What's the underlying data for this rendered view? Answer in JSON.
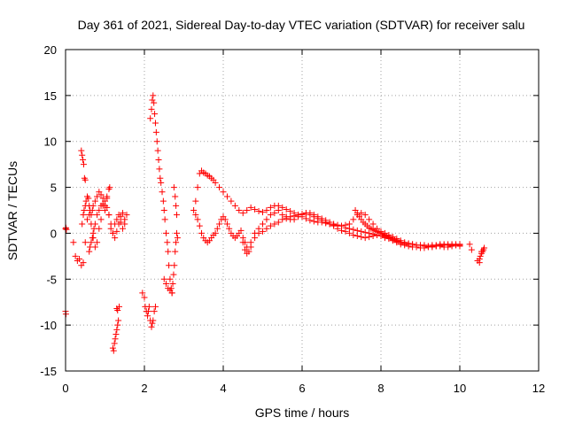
{
  "chart_data": {
    "type": "scatter",
    "title": "Day 361 of 2021, Sidereal Day-to-day VTEC variation (SDTVAR) for receiver salu",
    "xlabel": "GPS time / hours",
    "ylabel": "SDTVAR / TECUs",
    "xlim": [
      0,
      12
    ],
    "ylim": [
      -15,
      20
    ],
    "xticks": [
      0,
      2,
      4,
      6,
      8,
      10,
      12
    ],
    "yticks": [
      -15,
      -10,
      -5,
      0,
      5,
      10,
      15,
      20
    ],
    "grid": true,
    "marker": "+",
    "color": "#ff0000",
    "series": [
      {
        "name": "SDTVAR",
        "x": [
          0.0,
          0.01,
          0.02,
          0.0,
          0.01,
          0.2,
          0.25,
          0.3,
          0.35,
          0.4,
          0.45,
          0.5,
          0.55,
          0.6,
          0.65,
          0.7,
          0.75,
          0.8,
          0.85,
          0.9,
          0.95,
          1.0,
          1.05,
          1.1,
          1.15,
          1.2,
          1.25,
          1.3,
          1.35,
          1.4,
          1.45,
          1.5,
          1.55,
          0.42,
          0.45,
          0.47,
          0.5,
          0.52,
          0.55,
          0.58,
          0.6,
          0.62,
          0.65,
          0.68,
          0.7,
          0.75,
          0.8,
          0.85,
          0.9,
          0.95,
          1.0,
          1.05,
          1.1,
          1.12,
          0.6,
          0.62,
          0.65,
          0.68,
          0.7,
          0.72,
          0.75,
          0.8,
          0.85,
          0.9,
          0.95,
          1.0,
          1.05,
          1.1,
          1.15,
          1.2,
          1.25,
          1.3,
          1.35,
          1.4,
          1.45,
          1.5,
          0.4,
          0.42,
          0.44,
          0.46,
          0.48,
          0.5,
          1.2,
          1.22,
          1.24,
          1.26,
          1.28,
          1.3,
          1.32,
          1.34,
          1.36,
          1.3,
          1.32,
          1.95,
          2.0,
          2.02,
          2.05,
          2.08,
          2.1,
          2.12,
          2.15,
          2.18,
          2.2,
          2.22,
          2.25,
          2.28,
          2.15,
          2.18,
          2.2,
          2.22,
          2.24,
          2.26,
          2.28,
          2.3,
          2.32,
          2.34,
          2.36,
          2.38,
          2.4,
          2.42,
          2.45,
          2.48,
          2.5,
          2.52,
          2.55,
          2.58,
          2.6,
          2.62,
          2.65,
          2.68,
          2.7,
          2.5,
          2.55,
          2.6,
          2.65,
          2.7,
          2.72,
          2.74,
          2.76,
          2.78,
          2.8,
          2.82,
          2.84,
          2.75,
          2.78,
          2.8,
          2.82,
          3.25,
          3.3,
          3.35,
          3.4,
          3.45,
          3.5,
          3.55,
          3.6,
          3.65,
          3.7,
          3.75,
          3.8,
          3.9,
          4.0,
          4.1,
          4.2,
          4.3,
          4.4,
          4.5,
          4.6,
          4.7,
          4.8,
          4.9,
          5.0,
          5.1,
          5.2,
          5.3,
          5.4,
          5.5,
          5.6,
          5.7,
          5.8,
          5.9,
          6.0,
          6.1,
          6.2,
          6.3,
          6.4,
          6.5,
          6.6,
          6.7,
          6.8,
          6.9,
          7.0,
          7.1,
          7.2,
          7.3,
          7.4,
          7.5,
          7.6,
          7.7,
          7.8,
          7.9,
          8.0,
          8.1,
          8.2,
          8.3,
          8.4,
          8.5,
          8.6,
          8.7,
          8.8,
          8.9,
          9.0,
          9.1,
          9.2,
          9.3,
          9.4,
          9.5,
          9.6,
          9.7,
          9.8,
          9.9,
          10.0,
          3.3,
          3.35,
          3.4,
          3.45,
          3.5,
          3.55,
          3.6,
          3.65,
          3.7,
          3.75,
          3.8,
          3.85,
          3.9,
          3.95,
          4.0,
          4.05,
          4.1,
          4.15,
          4.2,
          4.25,
          4.3,
          4.35,
          4.4,
          4.45,
          4.5,
          4.55,
          4.6,
          4.65,
          4.7,
          4.8,
          4.9,
          5.0,
          5.1,
          5.2,
          5.3,
          5.4,
          5.5,
          5.6,
          5.7,
          5.8,
          5.9,
          6.0,
          6.1,
          6.2,
          6.3,
          6.4,
          6.5,
          6.6,
          6.7,
          6.8,
          6.9,
          7.0,
          7.1,
          7.2,
          7.3,
          7.4,
          7.5,
          7.6,
          7.7,
          7.8,
          7.9,
          8.0,
          8.1,
          8.2,
          8.3,
          8.4,
          8.5,
          8.6,
          8.7,
          8.8,
          8.9,
          9.0,
          9.1,
          9.2,
          9.3,
          9.4,
          9.5,
          9.6,
          9.7,
          9.8,
          9.9,
          10.0,
          4.5,
          4.55,
          4.6,
          4.7,
          4.8,
          4.9,
          5.0,
          5.1,
          5.2,
          5.3,
          5.4,
          5.5,
          5.6,
          5.7,
          5.8,
          5.9,
          6.0,
          6.1,
          6.2,
          6.3,
          6.4,
          6.5,
          6.6,
          6.7,
          6.8,
          6.9,
          7.0,
          7.1,
          7.2,
          7.3,
          7.4,
          7.5,
          7.6,
          7.7,
          7.8,
          7.9,
          8.0,
          8.1,
          8.2,
          8.3,
          8.4,
          8.5,
          8.6,
          8.7,
          8.8,
          8.9,
          9.0,
          9.1,
          9.2,
          9.3,
          9.4,
          9.5,
          9.6,
          9.7,
          9.8,
          9.9,
          10.0,
          7.35,
          7.4,
          7.45,
          7.5,
          7.55,
          7.6,
          7.65,
          7.7,
          7.75,
          7.8,
          7.85,
          7.9,
          7.95,
          8.0,
          8.05,
          8.1,
          8.15,
          8.2,
          8.25,
          8.3,
          8.35,
          8.4,
          8.45,
          8.5,
          10.25,
          10.3,
          10.45,
          10.5,
          10.52,
          10.55,
          10.58,
          10.6,
          10.62,
          10.5,
          10.55
        ],
        "y": [
          0.5,
          0.6,
          0.4,
          -8.5,
          -8.8,
          -1.0,
          -2.5,
          -3.0,
          -2.8,
          -3.5,
          -3.2,
          -1.0,
          1.5,
          2.0,
          1.0,
          -0.5,
          -1.5,
          -1.0,
          0.5,
          1.5,
          3.0,
          2.5,
          3.8,
          2.0,
          0.5,
          0.0,
          1.0,
          1.5,
          2.0,
          1.2,
          0.5,
          1.0,
          2.0,
          1.0,
          2.0,
          2.5,
          3.0,
          3.5,
          4.0,
          3.8,
          3.0,
          2.5,
          2.0,
          2.5,
          3.0,
          3.5,
          4.0,
          4.5,
          4.2,
          3.8,
          3.5,
          4.0,
          4.8,
          5.0,
          -2.0,
          -1.5,
          -1.0,
          -0.5,
          0.0,
          0.5,
          1.0,
          2.0,
          2.5,
          3.0,
          3.2,
          3.0,
          2.8,
          2.0,
          1.0,
          0.0,
          -0.5,
          0.2,
          1.0,
          1.8,
          2.2,
          1.5,
          9.0,
          8.5,
          8.0,
          7.5,
          6.0,
          5.8,
          -12.5,
          -12.8,
          -12.0,
          -11.5,
          -11.0,
          -10.5,
          -10.0,
          -9.5,
          -8.0,
          -8.2,
          -8.4,
          -6.5,
          -7.0,
          -8.0,
          -8.5,
          -9.0,
          -8.5,
          -8.0,
          -9.5,
          -10.2,
          -9.8,
          -9.5,
          -8.5,
          -8.0,
          12.5,
          13.5,
          14.5,
          15.0,
          14.2,
          13.0,
          12.0,
          11.0,
          10.0,
          9.0,
          8.0,
          7.0,
          6.0,
          5.5,
          4.5,
          3.5,
          2.5,
          1.5,
          0.0,
          -1.0,
          -2.0,
          -3.5,
          -5.0,
          -6.0,
          -6.5,
          -5.0,
          -5.5,
          -6.0,
          -6.2,
          -6.5,
          -5.5,
          -4.5,
          -3.5,
          -2.0,
          -1.0,
          0.0,
          -0.5,
          5.0,
          4.0,
          3.0,
          2.0,
          2.5,
          3.5,
          5.0,
          6.5,
          6.8,
          6.6,
          6.5,
          6.3,
          6.2,
          6.0,
          5.8,
          5.5,
          5.0,
          4.5,
          4.0,
          3.5,
          3.0,
          2.5,
          2.2,
          2.5,
          2.8,
          2.6,
          2.4,
          2.3,
          2.5,
          2.8,
          3.0,
          3.0,
          2.8,
          2.6,
          2.4,
          2.2,
          2.0,
          1.8,
          1.6,
          1.4,
          1.3,
          1.2,
          1.2,
          1.1,
          1.0,
          0.9,
          0.8,
          0.8,
          0.9,
          1.0,
          1.5,
          2.0,
          2.2,
          2.0,
          1.5,
          1.0,
          0.5,
          0.2,
          0.0,
          -0.2,
          -0.4,
          -0.6,
          -0.8,
          -1.0,
          -1.1,
          -1.2,
          -1.3,
          -1.3,
          -1.4,
          -1.4,
          -1.3,
          -1.3,
          -1.2,
          -1.2,
          -1.2,
          -1.3,
          -1.3,
          -1.2,
          2.0,
          1.5,
          0.8,
          0.0,
          -0.5,
          -0.8,
          -1.0,
          -0.8,
          -0.5,
          -0.2,
          0.0,
          0.5,
          1.0,
          1.5,
          1.8,
          1.5,
          1.0,
          0.5,
          0.0,
          -0.3,
          -0.5,
          -0.3,
          0.0,
          0.3,
          -0.5,
          -1.0,
          -1.5,
          -2.0,
          -1.0,
          0.0,
          0.5,
          1.0,
          1.5,
          2.0,
          2.2,
          2.5,
          2.0,
          1.8,
          1.5,
          1.5,
          1.8,
          2.0,
          2.2,
          2.0,
          1.8,
          1.6,
          1.4,
          1.2,
          1.0,
          0.8,
          0.5,
          0.3,
          0.2,
          0.0,
          -0.2,
          -0.3,
          -0.4,
          -0.5,
          -0.4,
          -0.3,
          -0.2,
          -0.3,
          -0.5,
          -0.6,
          -0.8,
          -1.0,
          -1.2,
          -1.3,
          -1.4,
          -1.5,
          -1.5,
          -1.6,
          -1.6,
          -1.5,
          -1.5,
          -1.4,
          -1.4,
          -1.5,
          -1.5,
          -1.4,
          -1.3,
          -1.4,
          -1.0,
          -1.8,
          -2.2,
          -1.5,
          -0.5,
          0.0,
          0.2,
          0.5,
          0.8,
          1.0,
          1.2,
          1.5,
          1.6,
          1.8,
          1.9,
          2.0,
          2.1,
          2.2,
          2.2,
          2.0,
          1.8,
          1.6,
          1.4,
          1.2,
          1.0,
          0.9,
          0.8,
          0.6,
          0.5,
          0.4,
          0.3,
          0.2,
          0.1,
          0.0,
          -0.1,
          -0.2,
          -0.3,
          -0.4,
          -0.5,
          -0.7,
          -0.9,
          -1.0,
          -1.1,
          -1.2,
          -1.2,
          -1.3,
          -1.3,
          -1.3,
          -1.4,
          -1.4,
          -1.4,
          -1.3,
          -1.3,
          -1.3,
          -1.2,
          -1.2,
          -1.3,
          2.5,
          2.2,
          1.8,
          1.5,
          1.2,
          1.0,
          0.8,
          0.6,
          0.5,
          0.4,
          0.3,
          0.2,
          0.1,
          0.0,
          -0.1,
          -0.2,
          -0.3,
          -0.4,
          -0.5,
          -0.6,
          -0.7,
          -0.8,
          -0.9,
          -1.0,
          -1.2,
          -1.8,
          -3.0,
          -2.8,
          -2.5,
          -2.2,
          -2.0,
          -1.8,
          -1.6,
          -3.2,
          -2.0
        ]
      }
    ]
  }
}
